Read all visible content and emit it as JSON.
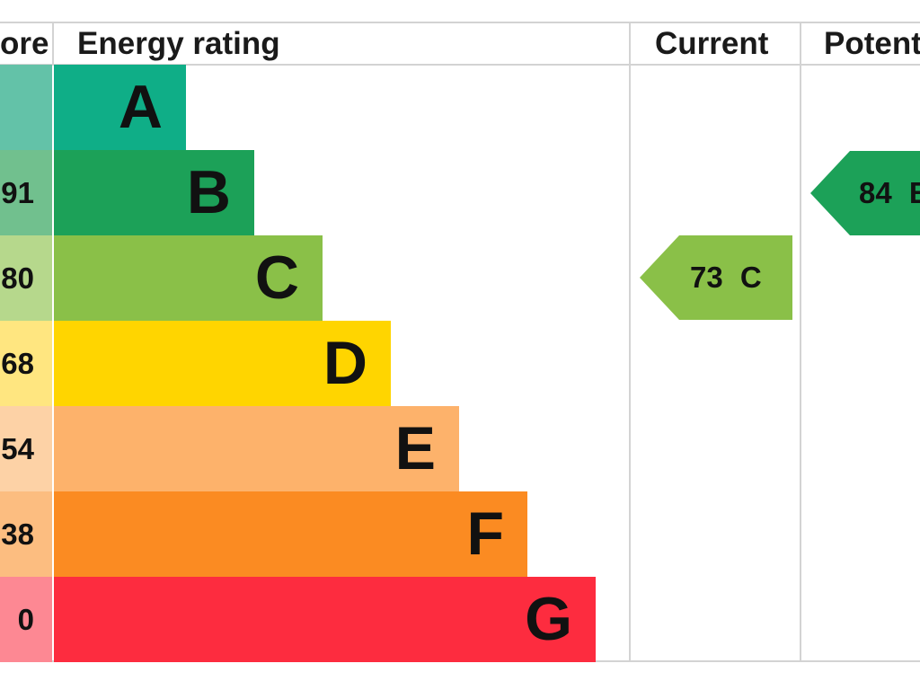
{
  "headers": {
    "score": "ore",
    "energy_rating": "Energy rating",
    "current": "Current",
    "potential": "Potent"
  },
  "bands": [
    {
      "letter": "A",
      "score": "",
      "color": "#0fae87",
      "score_bg": "#63c2a8"
    },
    {
      "letter": "B",
      "score": "91",
      "color": "#1ca158",
      "score_bg": "#71c08e"
    },
    {
      "letter": "C",
      "score": "80",
      "color": "#8ac048",
      "score_bg": "#b6d88c"
    },
    {
      "letter": "D",
      "score": "68",
      "color": "#ffd500",
      "score_bg": "#ffe680"
    },
    {
      "letter": "E",
      "score": "54",
      "color": "#fdb26b",
      "score_bg": "#fdd2a6"
    },
    {
      "letter": "F",
      "score": "38",
      "color": "#fb8b22",
      "score_bg": "#fcbd80"
    },
    {
      "letter": "G",
      "score": "0",
      "color": "#fd2c3f",
      "score_bg": "#fd8893"
    }
  ],
  "current": {
    "value": "73",
    "letter": "C",
    "color": "#8ac048"
  },
  "potential": {
    "value": "84",
    "letter": "B",
    "color": "#1ca158"
  }
}
